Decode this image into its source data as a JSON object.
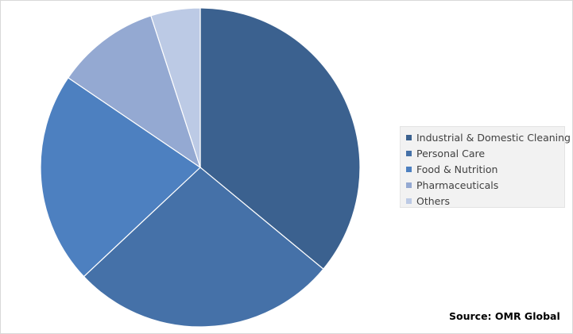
{
  "chart_data": {
    "type": "pie",
    "title": "",
    "categories": [
      "Industrial & Domestic Cleaning",
      "Personal Care",
      "Food & Nutrition",
      "Pharmaceuticals",
      "Others"
    ],
    "values": [
      36.0,
      27.0,
      21.5,
      10.5,
      5.0
    ],
    "colors": [
      "#3b618f",
      "#4571a8",
      "#4d80c0",
      "#94a9d2",
      "#bccae5"
    ],
    "legend_position": "right",
    "start_angle": "12 o'clock",
    "direction": "clockwise"
  },
  "source": "Source: OMR Global"
}
